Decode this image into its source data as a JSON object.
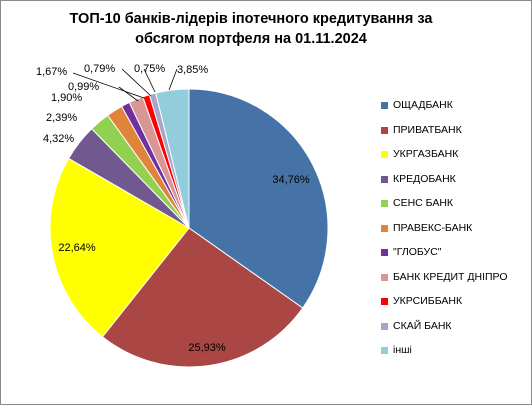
{
  "chart_data": {
    "type": "pie",
    "title_line1": "ТОП-10 банків-лідерів іпотечного кредитування  за",
    "title_line2": "обсягом портфеля на 01.11.2024",
    "slices": [
      {
        "name": "ОЩАДБАНК",
        "value": 34.76,
        "label": "34,76%",
        "color": "#4572A7"
      },
      {
        "name": "ПРИВАТБАНК",
        "value": 25.93,
        "label": "25,93%",
        "color": "#AA4643"
      },
      {
        "name": "УКРГАЗБАНК",
        "value": 22.64,
        "label": "22,64%",
        "color": "#FFFF00"
      },
      {
        "name": "КРЕДОБАНК",
        "value": 4.32,
        "label": "4,32%",
        "color": "#71588F"
      },
      {
        "name": "СЕНС БАНК",
        "value": 2.39,
        "label": "2,39%",
        "color": "#92D050"
      },
      {
        "name": "ПРАВЕКС-БАНК",
        "value": 1.9,
        "label": "1,90%",
        "color": "#E0843B"
      },
      {
        "name": "\"ГЛОБУС\"",
        "value": 0.99,
        "label": "0,99%",
        "color": "#7030A0"
      },
      {
        "name": "БАНК КРЕДИТ  ДНІПРО",
        "value": 1.67,
        "label": "1,67%",
        "color": "#D99694"
      },
      {
        "name": "УКРСИББАНК",
        "value": 0.79,
        "label": "0,79%",
        "color": "#FF0000"
      },
      {
        "name": "СКАЙ БАНК",
        "value": 0.75,
        "label": "0,75%",
        "color": "#A6A6C8"
      },
      {
        "name": "інші",
        "value": 3.85,
        "label": "3,85%",
        "color": "#92CDDC"
      }
    ],
    "legend_position": "right"
  }
}
